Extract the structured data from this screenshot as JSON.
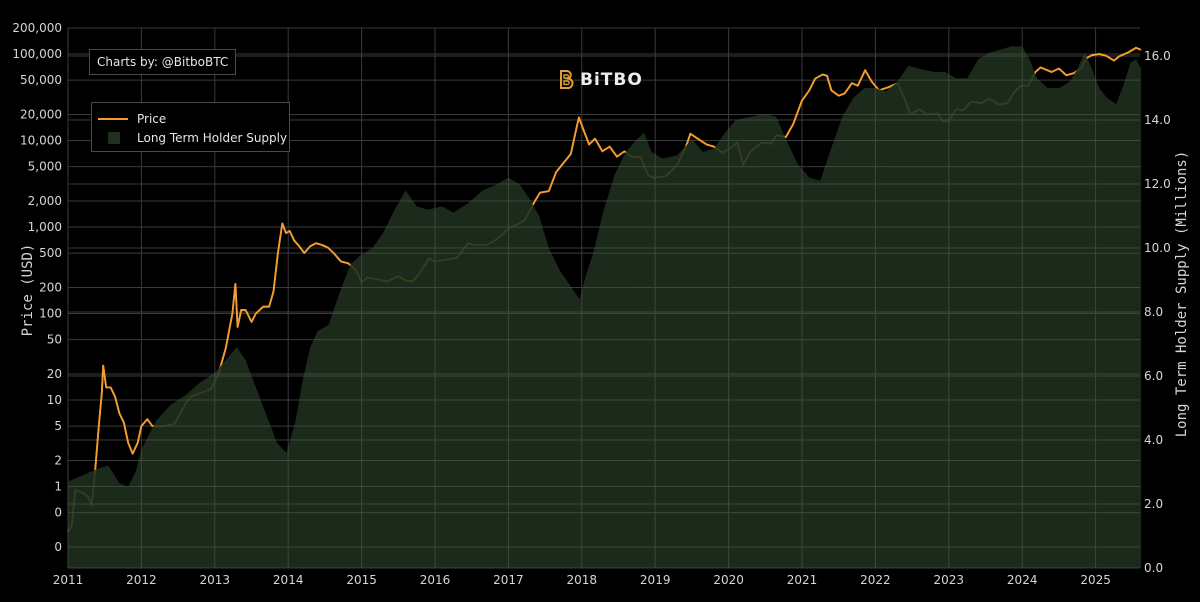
{
  "credit": "Charts by: @BitboBTC",
  "logo": {
    "text": "BiTBO",
    "icon": "bitbo-b-icon",
    "color": "#e0a030"
  },
  "colors": {
    "background": "#000000",
    "price_line": "#f39c2f",
    "lth_fill": "#1f301f",
    "lth_fill_opacity": 0.88,
    "grid": "#3a3a3a",
    "grid_in_fill": "#3c4d3c"
  },
  "chart_data": {
    "type": "line",
    "title": "",
    "xlabel": "",
    "ylabel": "Price (USD)",
    "y2label": "Long Term Holder Supply (Millions)",
    "x_ticks": [
      "2011",
      "2012",
      "2013",
      "2014",
      "2015",
      "2016",
      "2017",
      "2018",
      "2019",
      "2020",
      "2021",
      "2022",
      "2023",
      "2024",
      "2025"
    ],
    "x_range": [
      2011.0,
      2025.62
    ],
    "y_scale": "log",
    "y_ticks": [
      {
        "v": 200000,
        "label": "200,000"
      },
      {
        "v": 100000,
        "label": "100,000"
      },
      {
        "v": 50000,
        "label": "50,000"
      },
      {
        "v": 20000,
        "label": "20,000"
      },
      {
        "v": 10000,
        "label": "10,000"
      },
      {
        "v": 5000,
        "label": "5,000"
      },
      {
        "v": 2000,
        "label": "2,000"
      },
      {
        "v": 1000,
        "label": "1,000"
      },
      {
        "v": 500,
        "label": "500"
      },
      {
        "v": 200,
        "label": "200"
      },
      {
        "v": 100,
        "label": "100"
      },
      {
        "v": 50,
        "label": "50"
      },
      {
        "v": 20,
        "label": "20"
      },
      {
        "v": 10,
        "label": "10"
      },
      {
        "v": 5,
        "label": "5"
      },
      {
        "v": 2,
        "label": "2"
      },
      {
        "v": 1,
        "label": "1"
      },
      {
        "v": 0.5,
        "label": "0"
      },
      {
        "v": 0.2,
        "label": "0"
      }
    ],
    "y2_ticks": [
      {
        "v": 16,
        "label": "16.0"
      },
      {
        "v": 14,
        "label": "14.0"
      },
      {
        "v": 12,
        "label": "12.0"
      },
      {
        "v": 10,
        "label": "10.0"
      },
      {
        "v": 8,
        "label": "8.0"
      },
      {
        "v": 6,
        "label": "6.0"
      },
      {
        "v": 4,
        "label": "4.0"
      },
      {
        "v": 2,
        "label": "2.0"
      },
      {
        "v": 0,
        "label": "0.0"
      }
    ],
    "y2_range": [
      0,
      16.8
    ],
    "legend": [
      "Price",
      "Long Term Holder Supply"
    ],
    "legend_position": "top-left",
    "grid": true,
    "series": [
      {
        "name": "Price",
        "axis": "y",
        "type": "line",
        "points": [
          [
            2011.0,
            0.3
          ],
          [
            2011.05,
            0.35
          ],
          [
            2011.1,
            0.9
          ],
          [
            2011.2,
            0.85
          ],
          [
            2011.28,
            0.75
          ],
          [
            2011.32,
            0.6
          ],
          [
            2011.36,
            1.2
          ],
          [
            2011.42,
            5
          ],
          [
            2011.46,
            12
          ],
          [
            2011.48,
            25
          ],
          [
            2011.52,
            14
          ],
          [
            2011.58,
            14
          ],
          [
            2011.64,
            11
          ],
          [
            2011.7,
            7
          ],
          [
            2011.76,
            5.5
          ],
          [
            2011.82,
            3.2
          ],
          [
            2011.88,
            2.4
          ],
          [
            2011.95,
            3.2
          ],
          [
            2012.0,
            5
          ],
          [
            2012.08,
            6
          ],
          [
            2012.15,
            5
          ],
          [
            2012.3,
            5
          ],
          [
            2012.45,
            5.3
          ],
          [
            2012.6,
            9
          ],
          [
            2012.68,
            11
          ],
          [
            2012.8,
            12
          ],
          [
            2012.95,
            13.5
          ],
          [
            2013.05,
            20
          ],
          [
            2013.15,
            40
          ],
          [
            2013.24,
            100
          ],
          [
            2013.28,
            220
          ],
          [
            2013.31,
            70
          ],
          [
            2013.36,
            110
          ],
          [
            2013.42,
            110
          ],
          [
            2013.5,
            80
          ],
          [
            2013.56,
            100
          ],
          [
            2013.66,
            120
          ],
          [
            2013.74,
            120
          ],
          [
            2013.8,
            180
          ],
          [
            2013.86,
            500
          ],
          [
            2013.92,
            1100
          ],
          [
            2013.97,
            850
          ],
          [
            2014.02,
            900
          ],
          [
            2014.08,
            700
          ],
          [
            2014.15,
            600
          ],
          [
            2014.22,
            500
          ],
          [
            2014.3,
            600
          ],
          [
            2014.38,
            650
          ],
          [
            2014.46,
            620
          ],
          [
            2014.54,
            580
          ],
          [
            2014.62,
            500
          ],
          [
            2014.72,
            400
          ],
          [
            2014.82,
            380
          ],
          [
            2014.92,
            320
          ],
          [
            2015.0,
            230
          ],
          [
            2015.08,
            260
          ],
          [
            2015.2,
            250
          ],
          [
            2015.35,
            235
          ],
          [
            2015.5,
            270
          ],
          [
            2015.6,
            240
          ],
          [
            2015.7,
            235
          ],
          [
            2015.82,
            320
          ],
          [
            2015.92,
            430
          ],
          [
            2016.0,
            400
          ],
          [
            2016.15,
            420
          ],
          [
            2016.3,
            440
          ],
          [
            2016.45,
            650
          ],
          [
            2016.55,
            620
          ],
          [
            2016.7,
            620
          ],
          [
            2016.85,
            730
          ],
          [
            2017.0,
            960
          ],
          [
            2017.1,
            1050
          ],
          [
            2017.22,
            1200
          ],
          [
            2017.33,
            1800
          ],
          [
            2017.43,
            2500
          ],
          [
            2017.55,
            2600
          ],
          [
            2017.65,
            4300
          ],
          [
            2017.75,
            5500
          ],
          [
            2017.85,
            7000
          ],
          [
            2017.92,
            13000
          ],
          [
            2017.96,
            18500
          ],
          [
            2018.02,
            13500
          ],
          [
            2018.1,
            9000
          ],
          [
            2018.18,
            10500
          ],
          [
            2018.28,
            7500
          ],
          [
            2018.38,
            8500
          ],
          [
            2018.48,
            6500
          ],
          [
            2018.58,
            7500
          ],
          [
            2018.68,
            6500
          ],
          [
            2018.8,
            6400
          ],
          [
            2018.9,
            4000
          ],
          [
            2018.98,
            3700
          ],
          [
            2019.15,
            3900
          ],
          [
            2019.3,
            5200
          ],
          [
            2019.42,
            8500
          ],
          [
            2019.48,
            12000
          ],
          [
            2019.58,
            10500
          ],
          [
            2019.7,
            9000
          ],
          [
            2019.8,
            8500
          ],
          [
            2019.92,
            7200
          ],
          [
            2020.05,
            8500
          ],
          [
            2020.12,
            9500
          ],
          [
            2020.2,
            5200
          ],
          [
            2020.3,
            7500
          ],
          [
            2020.45,
            9500
          ],
          [
            2020.58,
            9200
          ],
          [
            2020.65,
            11500
          ],
          [
            2020.78,
            11000
          ],
          [
            2020.88,
            15500
          ],
          [
            2021.0,
            29000
          ],
          [
            2021.1,
            38000
          ],
          [
            2021.18,
            52000
          ],
          [
            2021.28,
            58000
          ],
          [
            2021.34,
            56000
          ],
          [
            2021.4,
            38000
          ],
          [
            2021.5,
            33000
          ],
          [
            2021.58,
            35000
          ],
          [
            2021.68,
            46000
          ],
          [
            2021.76,
            43000
          ],
          [
            2021.86,
            65000
          ],
          [
            2021.95,
            48000
          ],
          [
            2022.05,
            38000
          ],
          [
            2022.2,
            42000
          ],
          [
            2022.3,
            46000
          ],
          [
            2022.4,
            30000
          ],
          [
            2022.48,
            20000
          ],
          [
            2022.6,
            23000
          ],
          [
            2022.7,
            20000
          ],
          [
            2022.85,
            20500
          ],
          [
            2022.92,
            16500
          ],
          [
            2023.0,
            16800
          ],
          [
            2023.1,
            23000
          ],
          [
            2023.2,
            22500
          ],
          [
            2023.3,
            28000
          ],
          [
            2023.45,
            27000
          ],
          [
            2023.55,
            30500
          ],
          [
            2023.68,
            26000
          ],
          [
            2023.8,
            27000
          ],
          [
            2023.88,
            35000
          ],
          [
            2023.98,
            43000
          ],
          [
            2024.08,
            43000
          ],
          [
            2024.18,
            62000
          ],
          [
            2024.25,
            70000
          ],
          [
            2024.4,
            62000
          ],
          [
            2024.5,
            68000
          ],
          [
            2024.6,
            57000
          ],
          [
            2024.7,
            60000
          ],
          [
            2024.8,
            68000
          ],
          [
            2024.88,
            90000
          ],
          [
            2024.95,
            97000
          ],
          [
            2025.05,
            100000
          ],
          [
            2025.15,
            95000
          ],
          [
            2025.25,
            84000
          ],
          [
            2025.32,
            94000
          ],
          [
            2025.45,
            105000
          ],
          [
            2025.55,
            118000
          ],
          [
            2025.62,
            112000
          ]
        ]
      },
      {
        "name": "Long Term Holder Supply",
        "axis": "y2",
        "type": "area",
        "unit": "millions BTC",
        "points": [
          [
            2011.0,
            2.7
          ],
          [
            2011.2,
            2.9
          ],
          [
            2011.4,
            3.1
          ],
          [
            2011.55,
            3.2
          ],
          [
            2011.7,
            2.65
          ],
          [
            2011.82,
            2.55
          ],
          [
            2011.92,
            3.0
          ],
          [
            2012.0,
            3.7
          ],
          [
            2012.2,
            4.6
          ],
          [
            2012.4,
            5.1
          ],
          [
            2012.6,
            5.4
          ],
          [
            2012.8,
            5.8
          ],
          [
            2013.0,
            6.1
          ],
          [
            2013.15,
            6.5
          ],
          [
            2013.3,
            6.9
          ],
          [
            2013.42,
            6.5
          ],
          [
            2013.55,
            5.7
          ],
          [
            2013.7,
            4.8
          ],
          [
            2013.85,
            3.9
          ],
          [
            2013.98,
            3.6
          ],
          [
            2014.1,
            4.6
          ],
          [
            2014.2,
            5.9
          ],
          [
            2014.3,
            6.9
          ],
          [
            2014.4,
            7.4
          ],
          [
            2014.55,
            7.6
          ],
          [
            2014.7,
            8.6
          ],
          [
            2014.85,
            9.5
          ],
          [
            2015.0,
            9.8
          ],
          [
            2015.15,
            10.0
          ],
          [
            2015.3,
            10.5
          ],
          [
            2015.45,
            11.2
          ],
          [
            2015.6,
            11.8
          ],
          [
            2015.75,
            11.3
          ],
          [
            2015.9,
            11.2
          ],
          [
            2016.1,
            11.3
          ],
          [
            2016.25,
            11.1
          ],
          [
            2016.45,
            11.4
          ],
          [
            2016.65,
            11.8
          ],
          [
            2016.85,
            12.0
          ],
          [
            2017.0,
            12.2
          ],
          [
            2017.15,
            12.0
          ],
          [
            2017.3,
            11.5
          ],
          [
            2017.42,
            11.0
          ],
          [
            2017.55,
            10.0
          ],
          [
            2017.7,
            9.3
          ],
          [
            2017.85,
            8.8
          ],
          [
            2017.97,
            8.4
          ],
          [
            2018.05,
            9.1
          ],
          [
            2018.15,
            9.8
          ],
          [
            2018.3,
            11.2
          ],
          [
            2018.45,
            12.3
          ],
          [
            2018.6,
            13.0
          ],
          [
            2018.75,
            13.4
          ],
          [
            2018.85,
            13.6
          ],
          [
            2018.95,
            13.0
          ],
          [
            2019.1,
            12.8
          ],
          [
            2019.3,
            12.9
          ],
          [
            2019.5,
            13.4
          ],
          [
            2019.65,
            13.0
          ],
          [
            2019.8,
            13.1
          ],
          [
            2019.95,
            13.6
          ],
          [
            2020.1,
            14.0
          ],
          [
            2020.3,
            14.1
          ],
          [
            2020.5,
            14.2
          ],
          [
            2020.65,
            14.1
          ],
          [
            2020.8,
            13.3
          ],
          [
            2020.95,
            12.6
          ],
          [
            2021.1,
            12.2
          ],
          [
            2021.25,
            12.1
          ],
          [
            2021.38,
            13.0
          ],
          [
            2021.55,
            14.1
          ],
          [
            2021.7,
            14.7
          ],
          [
            2021.85,
            15.0
          ],
          [
            2022.0,
            15.0
          ],
          [
            2022.15,
            14.9
          ],
          [
            2022.3,
            15.2
          ],
          [
            2022.45,
            15.7
          ],
          [
            2022.6,
            15.6
          ],
          [
            2022.8,
            15.5
          ],
          [
            2022.95,
            15.5
          ],
          [
            2023.1,
            15.3
          ],
          [
            2023.25,
            15.3
          ],
          [
            2023.4,
            15.9
          ],
          [
            2023.55,
            16.1
          ],
          [
            2023.7,
            16.2
          ],
          [
            2023.85,
            16.3
          ],
          [
            2024.0,
            16.3
          ],
          [
            2024.1,
            15.9
          ],
          [
            2024.2,
            15.3
          ],
          [
            2024.35,
            15.0
          ],
          [
            2024.5,
            15.0
          ],
          [
            2024.65,
            15.2
          ],
          [
            2024.75,
            15.6
          ],
          [
            2024.85,
            16.1
          ],
          [
            2024.95,
            15.6
          ],
          [
            2025.05,
            15.0
          ],
          [
            2025.15,
            14.7
          ],
          [
            2025.28,
            14.5
          ],
          [
            2025.38,
            15.1
          ],
          [
            2025.48,
            15.8
          ],
          [
            2025.55,
            15.9
          ],
          [
            2025.62,
            15.6
          ]
        ]
      }
    ]
  }
}
